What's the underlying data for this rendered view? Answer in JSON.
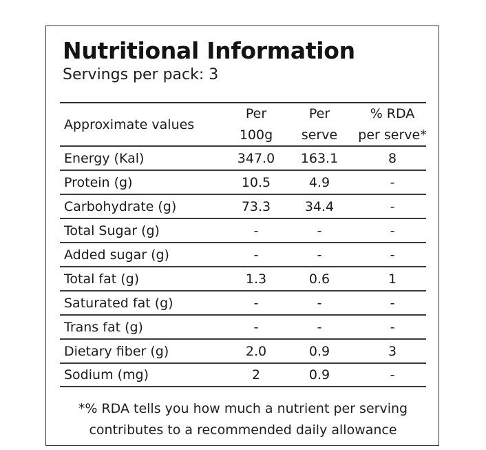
{
  "label": {
    "title": "Nutritional Information",
    "servings": "Servings per pack: 3"
  },
  "table": {
    "header": {
      "name": "Approximate values",
      "per100_l1": "Per",
      "per100_l2": "100g",
      "serve_l1": "Per",
      "serve_l2": "serve",
      "rda_l1": "% RDA",
      "rda_l2": "per serve*"
    },
    "rows": [
      {
        "name": "Energy (Kal)",
        "per100": "347.0",
        "serve": "163.1",
        "rda": "8"
      },
      {
        "name": "Protein (g)",
        "per100": "10.5",
        "serve": "4.9",
        "rda": "-"
      },
      {
        "name": "Carbohydrate (g)",
        "per100": "73.3",
        "serve": "34.4",
        "rda": "-"
      },
      {
        "name": "Total Sugar (g)",
        "per100": "-",
        "serve": "-",
        "rda": "-"
      },
      {
        "name": "Added sugar (g)",
        "per100": "-",
        "serve": "-",
        "rda": "-"
      },
      {
        "name": "Total fat (g)",
        "per100": "1.3",
        "serve": "0.6",
        "rda": "1"
      },
      {
        "name": "Saturated fat (g)",
        "per100": "-",
        "serve": "-",
        "rda": "-"
      },
      {
        "name": "Trans fat (g)",
        "per100": "-",
        "serve": "-",
        "rda": "-"
      },
      {
        "name": "Dietary fiber (g)",
        "per100": "2.0",
        "serve": "0.9",
        "rda": "3"
      },
      {
        "name": "Sodium (mg)",
        "per100": "2",
        "serve": "0.9",
        "rda": "-"
      }
    ]
  },
  "footnote": {
    "line1": "*% RDA tells you how much a nutrient per serving",
    "line2": "contributes to a recommended daily allowance"
  }
}
